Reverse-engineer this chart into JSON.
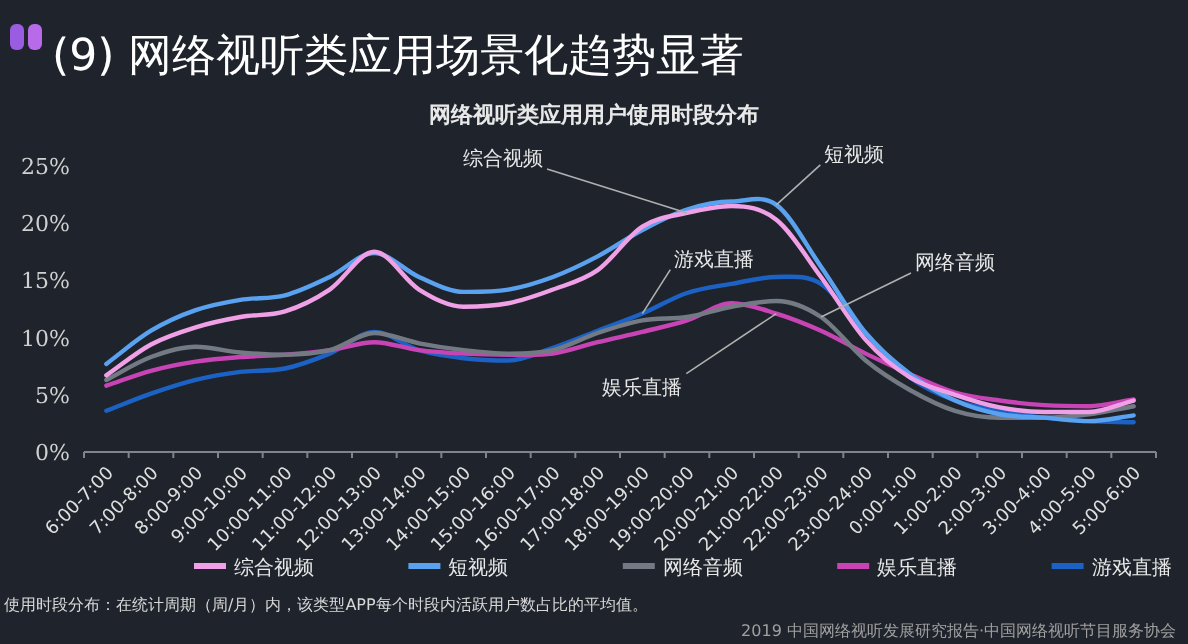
{
  "chart_data": {
    "type": "line",
    "title": "(9) 网络视听类应用场景化趋势显著",
    "subtitle": "网络视听类应用用户使用时段分布",
    "categories": [
      "6:00-7:00",
      "7:00-8:00",
      "8:00-9:00",
      "9:00-10:00",
      "10:00-11:00",
      "11:00-12:00",
      "12:00-13:00",
      "13:00-14:00",
      "14:00-15:00",
      "15:00-16:00",
      "16:00-17:00",
      "17:00-18:00",
      "18:00-19:00",
      "19:00-20:00",
      "20:00-21:00",
      "21:00-22:00",
      "22:00-23:00",
      "23:00-24:00",
      "0:00-1:00",
      "1:00-2:00",
      "2:00-3:00",
      "3:00-4:00",
      "4:00-5:00",
      "5:00-6:00"
    ],
    "series": [
      {
        "name": "综合视频",
        "color": "#f0a0e6",
        "values": [
          6.7,
          9.4,
          10.9,
          11.8,
          12.3,
          14.2,
          17.5,
          14.2,
          12.7,
          13.0,
          14.2,
          15.9,
          19.7,
          20.9,
          21.5,
          20.3,
          15.3,
          9.8,
          6.5,
          5.0,
          3.9,
          3.5,
          3.5,
          4.5
        ]
      },
      {
        "name": "短视频",
        "color": "#5aa2f0",
        "values": [
          7.7,
          10.6,
          12.4,
          13.3,
          13.7,
          15.3,
          17.4,
          15.3,
          14.0,
          14.2,
          15.3,
          17.1,
          19.4,
          21.2,
          21.9,
          21.6,
          16.2,
          10.4,
          6.8,
          4.5,
          3.3,
          3.0,
          2.7,
          3.2
        ]
      },
      {
        "name": "网络音频",
        "color": "#737a84",
        "values": [
          6.3,
          8.3,
          9.2,
          8.7,
          8.5,
          8.9,
          10.4,
          9.5,
          8.9,
          8.6,
          8.9,
          10.4,
          11.5,
          11.8,
          12.7,
          13.2,
          11.8,
          8.0,
          5.4,
          3.6,
          3.0,
          3.0,
          3.3,
          4.0
        ]
      },
      {
        "name": "娱乐直播",
        "color": "#c844b4",
        "values": [
          5.8,
          7.1,
          7.9,
          8.3,
          8.5,
          8.9,
          9.6,
          8.9,
          8.6,
          8.5,
          8.6,
          9.6,
          10.5,
          11.5,
          13.0,
          12.1,
          10.6,
          8.6,
          6.8,
          5.2,
          4.5,
          4.1,
          4.0,
          4.6
        ]
      },
      {
        "name": "游戏直播",
        "color": "#1c62c4",
        "values": [
          3.6,
          5.1,
          6.3,
          7.0,
          7.3,
          8.6,
          10.5,
          8.9,
          8.2,
          8.0,
          9.1,
          10.6,
          12.1,
          13.9,
          14.7,
          15.3,
          14.7,
          10.4,
          6.5,
          4.5,
          3.6,
          3.0,
          2.7,
          2.6
        ]
      }
    ],
    "ylim": [
      0,
      25
    ],
    "yticks": [
      {
        "value": 0,
        "label": "0%"
      },
      {
        "value": 5,
        "label": "5%"
      },
      {
        "value": 10,
        "label": "10%"
      },
      {
        "value": 15,
        "label": "15%"
      },
      {
        "value": 20,
        "label": "20%"
      },
      {
        "value": 25,
        "label": "25%"
      }
    ],
    "grid": false,
    "legend": "bottom",
    "annotations": [
      {
        "text": "综合视频",
        "x": "19:00-20:00",
        "y": 20.9
      },
      {
        "text": "短视频",
        "x": "21:00-22:00",
        "y": 21.6
      },
      {
        "text": "游戏直播",
        "x": "18:00-19:00",
        "y": 12.1
      },
      {
        "text": "网络音频",
        "x": "22:00-23:00",
        "y": 11.8
      },
      {
        "text": "娱乐直播",
        "x": "21:00-22:00",
        "y": 12.1
      },
      "使用时段分布：在统计周期（周/月）内，该类型APP每个时段内活跃用户数占比的平均值。",
      "2019 中国网络视听发展研究报告·中国网络视听节目服务协会"
    ]
  }
}
